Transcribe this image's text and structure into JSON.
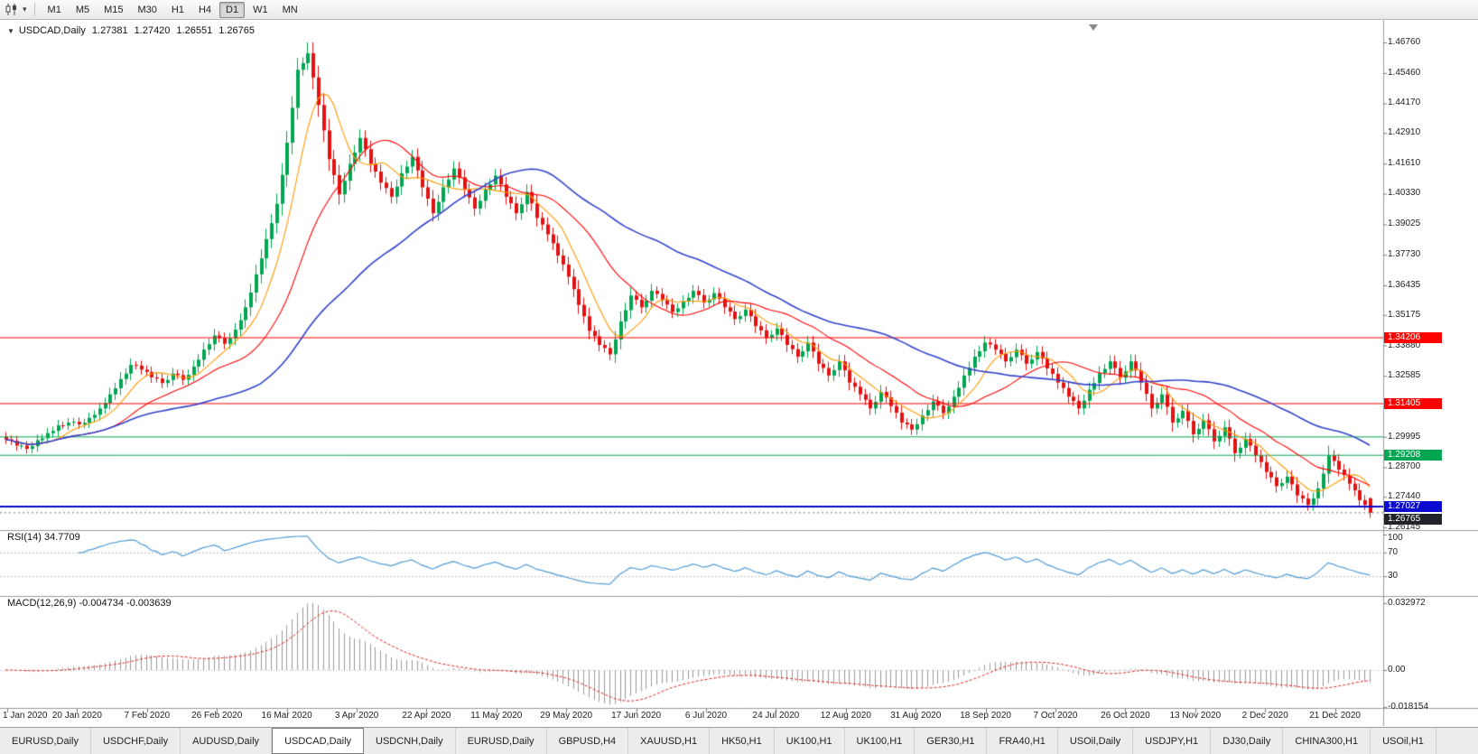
{
  "toolbar": {
    "timeframes": [
      {
        "label": "M1",
        "active": false
      },
      {
        "label": "M5",
        "active": false
      },
      {
        "label": "M15",
        "active": false
      },
      {
        "label": "M30",
        "active": false
      },
      {
        "label": "H1",
        "active": false
      },
      {
        "label": "H4",
        "active": false
      },
      {
        "label": "D1",
        "active": true
      },
      {
        "label": "W1",
        "active": false
      },
      {
        "label": "MN",
        "active": false
      }
    ]
  },
  "quote": {
    "symbol": "USDCAD,Daily",
    "open": "1.27381",
    "high": "1.27420",
    "low": "1.26551",
    "close": "1.26765"
  },
  "indicators": {
    "rsi": {
      "label": "RSI(14) 34.7709",
      "period": 14,
      "value": "34.7709",
      "levels": [
        "100",
        "70",
        "30"
      ],
      "color": "#4f9bd5"
    },
    "macd": {
      "label": "MACD(12,26,9) -0.004734 -0.003639",
      "fast": 12,
      "slow": 26,
      "signal": 9,
      "values": [
        "-0.004734",
        "-0.003639"
      ],
      "axis": [
        "0.032972",
        "0.00",
        "-0.018154"
      ],
      "histogram_color": "#9a9a9a",
      "signal_color": "#e02020"
    }
  },
  "chart_data": {
    "type": "candlestick",
    "symbol": "USDCAD",
    "timeframe": "Daily",
    "title": "USDCAD,Daily",
    "x_labels": [
      "1 Jan 2020",
      "20 Jan 2020",
      "7 Feb 2020",
      "26 Feb 2020",
      "16 Mar 2020",
      "3 Apr 2020",
      "22 Apr 2020",
      "11 May 2020",
      "29 May 2020",
      "17 Jun 2020",
      "6 Jul 2020",
      "24 Jul 2020",
      "12 Aug 2020",
      "31 Aug 2020",
      "18 Sep 2020",
      "7 Oct 2020",
      "26 Oct 2020",
      "13 Nov 2020",
      "2 Dec 2020",
      "21 Dec 2020"
    ],
    "y_ticks": [
      "1.46760",
      "1.45460",
      "1.44170",
      "1.42910",
      "1.41610",
      "1.40330",
      "1.39025",
      "1.37730",
      "1.36435",
      "1.35175",
      "1.33880",
      "1.32585",
      "1.31290",
      "1.29995",
      "1.28700",
      "1.27440",
      "1.26145"
    ],
    "y_axis": {
      "top": 1.4676,
      "bottom": 1.26145
    },
    "first_open": 1.3,
    "closes": [
      1.2988,
      1.2962,
      1.2948,
      1.2985,
      1.3015,
      1.3048,
      1.306,
      1.3052,
      1.308,
      1.312,
      1.318,
      1.3245,
      1.3305,
      1.3285,
      1.3252,
      1.3228,
      1.3268,
      1.3242,
      1.3298,
      1.337,
      1.343,
      1.3395,
      1.3455,
      1.355,
      1.369,
      1.384,
      1.399,
      1.425,
      1.456,
      1.463,
      1.441,
      1.418,
      1.403,
      1.416,
      1.427,
      1.416,
      1.408,
      1.402,
      1.412,
      1.419,
      1.406,
      1.395,
      1.406,
      1.414,
      1.405,
      1.397,
      1.405,
      1.411,
      1.402,
      1.395,
      1.404,
      1.393,
      1.386,
      1.377,
      1.368,
      1.356,
      1.345,
      1.339,
      1.335,
      1.349,
      1.36,
      1.355,
      1.362,
      1.358,
      1.353,
      1.3575,
      1.362,
      1.357,
      1.361,
      1.355,
      1.35,
      1.354,
      1.347,
      1.342,
      1.346,
      1.339,
      1.334,
      1.34,
      1.331,
      1.326,
      1.332,
      1.323,
      1.318,
      1.312,
      1.319,
      1.313,
      1.306,
      1.303,
      1.309,
      1.315,
      1.31,
      1.317,
      1.326,
      1.334,
      1.34,
      1.337,
      1.332,
      1.337,
      1.331,
      1.336,
      1.329,
      1.323,
      1.317,
      1.312,
      1.32,
      1.327,
      1.332,
      1.325,
      1.332,
      1.323,
      1.312,
      1.318,
      1.306,
      1.311,
      1.301,
      1.307,
      1.298,
      1.304,
      1.293,
      1.299,
      1.292,
      1.285,
      1.279,
      1.283,
      1.275,
      1.271,
      1.278,
      1.292,
      1.286,
      1.28,
      1.273,
      1.2676
    ],
    "up_color": "#00a651",
    "down_color": "#e31212",
    "moving_averages": [
      {
        "period": 8,
        "color": "#ff9900",
        "width": 1.1
      },
      {
        "period": 21,
        "color": "#ff0000",
        "width": 1.1
      },
      {
        "period": 50,
        "color": "#3344cc",
        "width": 1.6
      }
    ],
    "horizontal_lines": [
      {
        "value": 1.34206,
        "label": "1.34206",
        "color": "#ff0000",
        "width": 1
      },
      {
        "value": 1.31405,
        "label": "1.31405",
        "color": "#ff0000",
        "width": 1
      },
      {
        "value": 1.2999,
        "label": "",
        "color": "#00a651",
        "width": 1
      },
      {
        "value": 1.29208,
        "label": "1.29208",
        "color": "#00a651",
        "width": 1
      },
      {
        "value": 1.27027,
        "label": "1.27027",
        "color": "#0909cf",
        "width": 2
      }
    ],
    "bid": {
      "value": 1.26765,
      "label": "1.26765",
      "tag_color": "#20242a"
    }
  },
  "tabs": [
    {
      "label": "EURUSD,Daily",
      "active": false
    },
    {
      "label": "USDCHF,Daily",
      "active": false
    },
    {
      "label": "AUDUSD,Daily",
      "active": false
    },
    {
      "label": "USDCAD,Daily",
      "active": true
    },
    {
      "label": "USDCNH,Daily",
      "active": false
    },
    {
      "label": "EURUSD,Daily",
      "active": false
    },
    {
      "label": "GBPUSD,H4",
      "active": false
    },
    {
      "label": "XAUUSD,H1",
      "active": false
    },
    {
      "label": "HK50,H1",
      "active": false
    },
    {
      "label": "UK100,H1",
      "active": false
    },
    {
      "label": "UK100,H1",
      "active": false
    },
    {
      "label": "GER30,H1",
      "active": false
    },
    {
      "label": "FRA40,H1",
      "active": false
    },
    {
      "label": "USOil,Daily",
      "active": false
    },
    {
      "label": "USDJPY,H1",
      "active": false
    },
    {
      "label": "DJ30,Daily",
      "active": false
    },
    {
      "label": "CHINA300,H1",
      "active": false
    },
    {
      "label": "USOil,H1",
      "active": false
    }
  ]
}
